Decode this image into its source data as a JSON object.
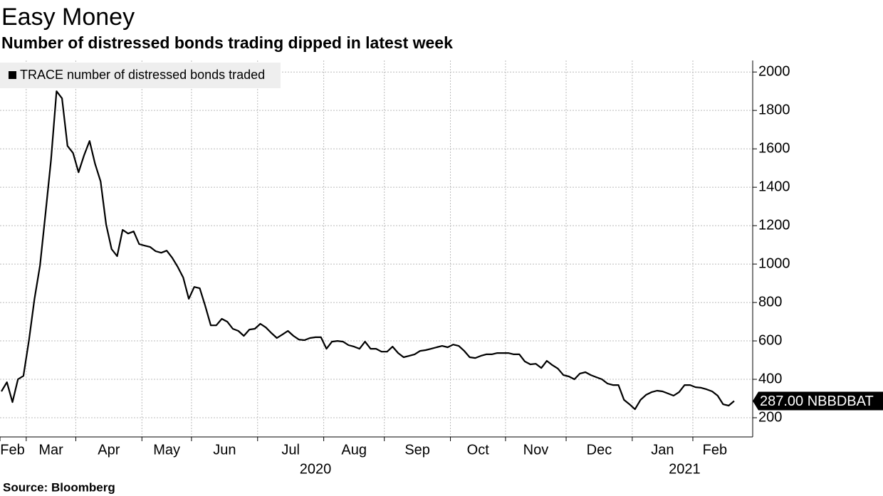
{
  "chart_data": {
    "type": "line",
    "title": "Easy Money",
    "subtitle": "Number of distressed bonds trading dipped in latest week",
    "source": "Source: Bloomberg",
    "categories": [
      "2020-02",
      "2020-02",
      "2020-02",
      "2020-02",
      "2020-02",
      "2020-03",
      "2020-03",
      "2020-03",
      "2020-03",
      "2020-03",
      "2020-03",
      "2020-03",
      "2020-03",
      "2020-03",
      "2020-04",
      "2020-04",
      "2020-04",
      "2020-04",
      "2020-04",
      "2020-04",
      "2020-04",
      "2020-04",
      "2020-04",
      "2020-04",
      "2020-04",
      "2020-04",
      "2020-05",
      "2020-05",
      "2020-05",
      "2020-05",
      "2020-05",
      "2020-05",
      "2020-05",
      "2020-05",
      "2020-05",
      "2020-06",
      "2020-06",
      "2020-06",
      "2020-06",
      "2020-06",
      "2020-06",
      "2020-06",
      "2020-06",
      "2020-06",
      "2020-06",
      "2020-06",
      "2020-06",
      "2020-07",
      "2020-07",
      "2020-07",
      "2020-07",
      "2020-07",
      "2020-07",
      "2020-07",
      "2020-07",
      "2020-07",
      "2020-07",
      "2020-07",
      "2020-07",
      "2020-08",
      "2020-08",
      "2020-08",
      "2020-08",
      "2020-08",
      "2020-08",
      "2020-08",
      "2020-08",
      "2020-08",
      "2020-08",
      "2020-08",
      "2020-09",
      "2020-09",
      "2020-09",
      "2020-09",
      "2020-09",
      "2020-09",
      "2020-09",
      "2020-09",
      "2020-09",
      "2020-09",
      "2020-09",
      "2020-09",
      "2020-10",
      "2020-10",
      "2020-10",
      "2020-10",
      "2020-10",
      "2020-10",
      "2020-10",
      "2020-10",
      "2020-10",
      "2020-10",
      "2020-11",
      "2020-11",
      "2020-11",
      "2020-11",
      "2020-11",
      "2020-11",
      "2020-11",
      "2020-11",
      "2020-11",
      "2020-11",
      "2020-11",
      "2020-12",
      "2020-12",
      "2020-12",
      "2020-12",
      "2020-12",
      "2020-12",
      "2020-12",
      "2020-12",
      "2020-12",
      "2020-12",
      "2020-12",
      "2020-12",
      "2021-01",
      "2021-01",
      "2021-01",
      "2021-01",
      "2021-01",
      "2021-01",
      "2021-01",
      "2021-01",
      "2021-01",
      "2021-01",
      "2021-01",
      "2021-02",
      "2021-02",
      "2021-02",
      "2021-02",
      "2021-02",
      "2021-02",
      "2021-02",
      "2021-02"
    ],
    "series": [
      {
        "name": "TRACE number of distressed bonds traded",
        "color": "#000000",
        "values": [
          337,
          385,
          281,
          400,
          418,
          604,
          818,
          993,
          1263,
          1540,
          1900,
          1863,
          1615,
          1578,
          1478,
          1567,
          1641,
          1522,
          1430,
          1207,
          1078,
          1041,
          1178,
          1159,
          1170,
          1104,
          1096,
          1089,
          1067,
          1059,
          1070,
          1033,
          985,
          930,
          819,
          881,
          874,
          781,
          681,
          681,
          715,
          700,
          663,
          652,
          626,
          659,
          663,
          689,
          670,
          641,
          615,
          633,
          652,
          626,
          607,
          604,
          615,
          619,
          619,
          559,
          596,
          600,
          596,
          578,
          570,
          559,
          596,
          559,
          559,
          544,
          544,
          570,
          537,
          515,
          522,
          530,
          548,
          552,
          559,
          567,
          574,
          567,
          581,
          574,
          548,
          515,
          511,
          522,
          530,
          530,
          537,
          537,
          537,
          530,
          530,
          493,
          478,
          481,
          459,
          496,
          474,
          456,
          422,
          415,
          400,
          430,
          437,
          422,
          411,
          400,
          378,
          370,
          370,
          293,
          270,
          244,
          293,
          319,
          333,
          341,
          337,
          326,
          315,
          333,
          370,
          370,
          359,
          356,
          348,
          337,
          315,
          270,
          263,
          287
        ],
        "end_label": "287.00 NBBDBAT"
      }
    ],
    "xticks": [
      {
        "value": "2020-02",
        "label": "Feb"
      },
      {
        "value": "2020-03",
        "label": "Mar"
      },
      {
        "value": "2020-04",
        "label": "Apr"
      },
      {
        "value": "2020-05",
        "label": "May"
      },
      {
        "value": "2020-06",
        "label": "Jun"
      },
      {
        "value": "2020-07",
        "label": "Jul"
      },
      {
        "value": "2020-08",
        "label": "Aug"
      },
      {
        "value": "2020-09",
        "label": "Sep"
      },
      {
        "value": "2020-10",
        "label": "Oct"
      },
      {
        "value": "2020-11",
        "label": "Nov"
      },
      {
        "value": "2020-12",
        "label": "Dec"
      },
      {
        "value": "2021-01",
        "label": "Jan"
      },
      {
        "value": "2021-02",
        "label": "Feb"
      }
    ],
    "years": [
      "2020",
      "2021"
    ],
    "ylim": [
      100,
      2060
    ],
    "yticks": [
      200,
      400,
      600,
      800,
      1000,
      1200,
      1400,
      1600,
      1800,
      2000
    ],
    "grid": true,
    "legend": "top-left"
  }
}
